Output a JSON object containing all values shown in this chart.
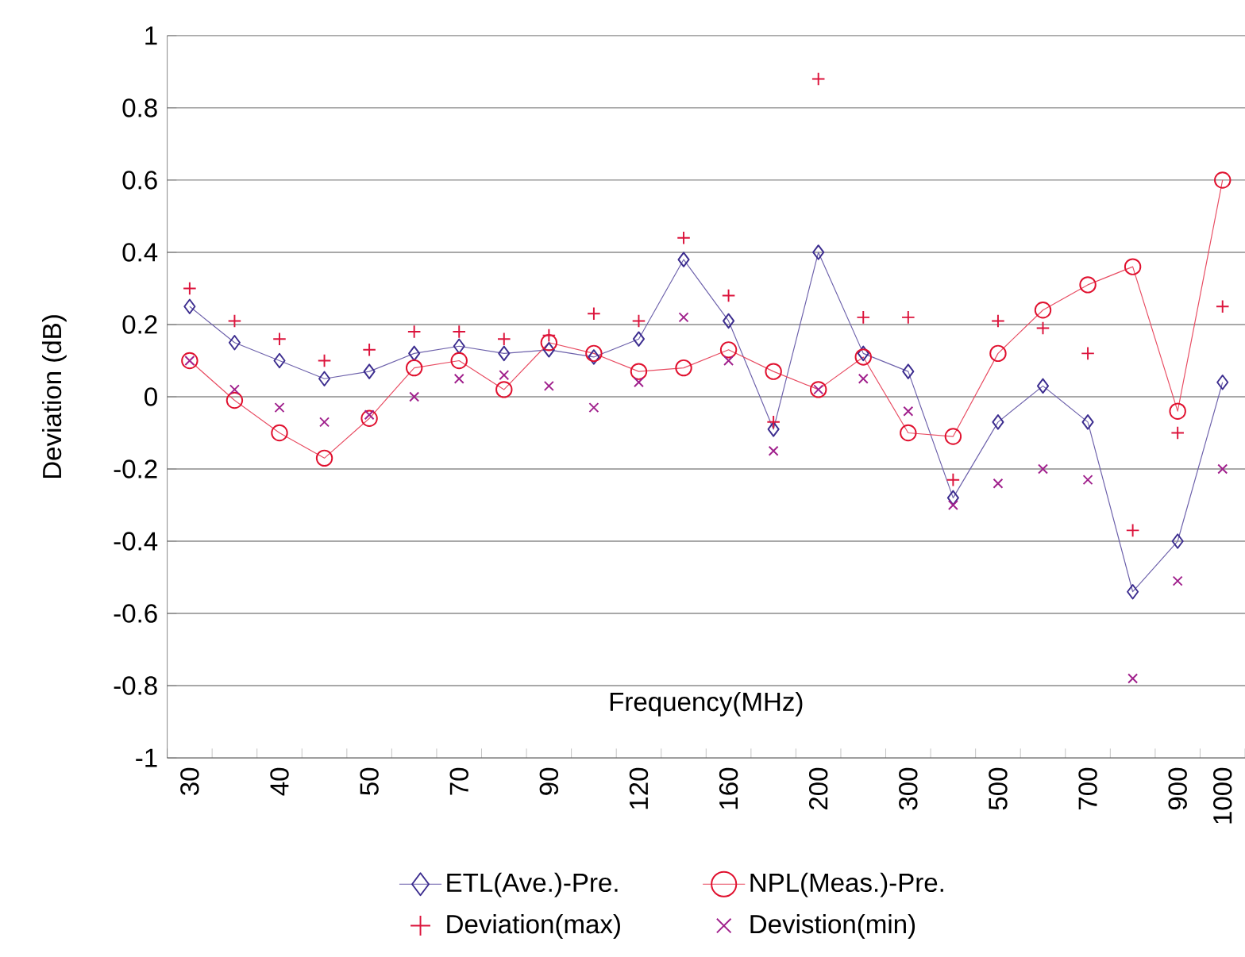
{
  "chart_data": {
    "type": "line",
    "ylabel": "Deviation (dB)",
    "xlabel": "Frequency(MHz)",
    "categories": [
      "30",
      null,
      "40",
      null,
      "50",
      null,
      "70",
      null,
      "90",
      null,
      "120",
      null,
      "160",
      null,
      "200",
      null,
      "300",
      null,
      "500",
      null,
      "700",
      null,
      "900",
      "1000"
    ],
    "ylim": [
      -1,
      1
    ],
    "yticks": [
      -1,
      -0.8,
      -0.6,
      -0.4,
      -0.2,
      0,
      0.2,
      0.4,
      0.6,
      0.8,
      1
    ],
    "grid": "y",
    "legend": "bottom",
    "series": [
      {
        "name": "ETL(Ave.)-Pre.",
        "marker": "diamond",
        "color": "#3c2d8f",
        "values": [
          0.25,
          0.15,
          0.1,
          0.05,
          0.07,
          0.12,
          0.14,
          0.12,
          0.13,
          0.11,
          0.16,
          0.38,
          0.21,
          -0.09,
          0.4,
          0.12,
          0.07,
          -0.28,
          -0.07,
          0.03,
          -0.07,
          -0.54,
          -0.4,
          0.04
        ]
      },
      {
        "name": "NPL(Meas.)-Pre.",
        "marker": "circle",
        "color": "#e0102e",
        "values": [
          0.1,
          -0.01,
          -0.1,
          -0.17,
          -0.06,
          0.08,
          0.1,
          0.02,
          0.15,
          0.12,
          0.07,
          0.08,
          0.13,
          0.07,
          0.02,
          0.11,
          -0.1,
          -0.11,
          0.12,
          0.24,
          0.31,
          0.36,
          -0.04,
          0.6
        ]
      },
      {
        "name": "Deviation(max)",
        "type": "scatter",
        "marker": "plus",
        "color": "#dc143c",
        "values": [
          0.3,
          0.21,
          0.16,
          0.1,
          0.13,
          0.18,
          0.18,
          0.16,
          0.17,
          0.23,
          0.21,
          0.44,
          0.28,
          -0.07,
          0.88,
          0.22,
          0.22,
          -0.23,
          0.21,
          0.19,
          0.12,
          -0.37,
          -0.1,
          0.25
        ]
      },
      {
        "name": "Devistion(min)",
        "type": "scatter",
        "marker": "cross",
        "color": "#a0208c",
        "values": [
          0.1,
          0.02,
          -0.03,
          -0.07,
          -0.05,
          0,
          0.05,
          0.06,
          0.03,
          -0.03,
          0.04,
          0.22,
          0.1,
          -0.15,
          0.02,
          0.05,
          -0.04,
          -0.3,
          -0.24,
          -0.2,
          -0.23,
          -0.78,
          -0.51,
          -0.2
        ]
      }
    ]
  }
}
